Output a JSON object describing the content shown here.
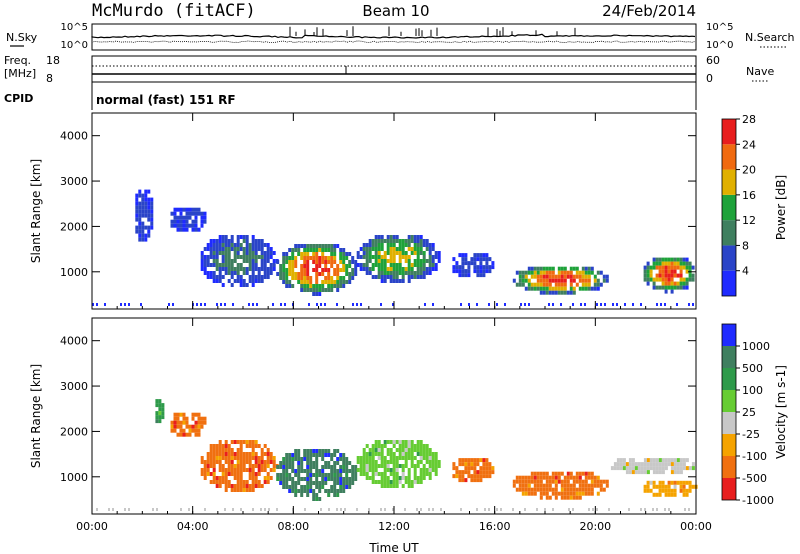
{
  "header": {
    "station": "McMurdo (fitACF)",
    "beam": "Beam 10",
    "date": "24/Feb/2014"
  },
  "noise_panel": {
    "left_label": "N.Sky",
    "right_label": "N.Search",
    "ticks": [
      "10^5",
      "10^0"
    ]
  },
  "freq_panel": {
    "left_label_1": "Freq.",
    "left_label_2": "[MHz]",
    "left_ticks": [
      "18",
      "8"
    ],
    "right_label": "Nave",
    "right_ticks": [
      "60",
      "0"
    ]
  },
  "cpid": {
    "label": "CPID",
    "value": "normal (fast) 151 RF"
  },
  "chart_data": [
    {
      "type": "heatmap",
      "name": "power",
      "ylabel": "Slant Range [km]",
      "yticks": [
        "1000",
        "2000",
        "3000",
        "4000"
      ],
      "xticks": [
        "00:00",
        "04:00",
        "08:00",
        "12:00",
        "16:00",
        "20:00",
        "00:00"
      ],
      "xlim": [
        0,
        24
      ],
      "ylim": [
        180,
        4500
      ],
      "colorbar": {
        "label": "Power [dB]",
        "ticks": [
          "4",
          "8",
          "12",
          "16",
          "20",
          "24",
          "28"
        ],
        "colors": [
          "#1f2bff",
          "#2a44c8",
          "#3f7f5f",
          "#1ea23a",
          "#e0b000",
          "#f06a10",
          "#e81e1e"
        ]
      },
      "regions": [
        {
          "t0": 1.6,
          "t1": 2.4,
          "r0": 1700,
          "r1": 2900,
          "level": 1
        },
        {
          "t0": 3.0,
          "t1": 4.5,
          "r0": 1900,
          "r1": 2500,
          "level": 1
        },
        {
          "t0": 4.2,
          "t1": 7.3,
          "r0": 700,
          "r1": 1900,
          "level": 2
        },
        {
          "t0": 7.2,
          "t1": 10.5,
          "r0": 550,
          "r1": 1700,
          "level": 6
        },
        {
          "t0": 10.4,
          "t1": 13.8,
          "r0": 800,
          "r1": 1900,
          "level": 4
        },
        {
          "t0": 14.2,
          "t1": 15.9,
          "r0": 900,
          "r1": 1500,
          "level": 1
        },
        {
          "t0": 16.6,
          "t1": 20.5,
          "r0": 550,
          "r1": 1200,
          "level": 6
        },
        {
          "t0": 21.8,
          "t1": 24.0,
          "r0": 600,
          "r1": 1400,
          "level": 6
        }
      ]
    },
    {
      "type": "heatmap",
      "name": "velocity",
      "ylabel": "Slant Range [km]",
      "yticks": [
        "1000",
        "2000",
        "3000",
        "4000"
      ],
      "xticks": [
        "00:00",
        "04:00",
        "08:00",
        "12:00",
        "16:00",
        "20:00",
        "00:00"
      ],
      "xlabel": "Time UT",
      "xlim": [
        0,
        24
      ],
      "ylim": [
        180,
        4500
      ],
      "colorbar": {
        "label": "Velocity [m s-1]",
        "ticks": [
          "1000",
          "500",
          "100",
          "25",
          "-25",
          "-100",
          "-500",
          "-1000"
        ],
        "colors": [
          "#1f2bff",
          "#3f7f5f",
          "#2e9a4a",
          "#66cc33",
          "#c8c8c8",
          "#f5a300",
          "#f07010",
          "#e81e1e"
        ]
      },
      "regions": [
        {
          "t0": 2.4,
          "t1": 2.8,
          "r0": 2200,
          "r1": 2800,
          "level": 2
        },
        {
          "t0": 3.0,
          "t1": 4.5,
          "r0": 1900,
          "r1": 2500,
          "level": 6
        },
        {
          "t0": 4.2,
          "t1": 7.3,
          "r0": 700,
          "r1": 1900,
          "level": 6
        },
        {
          "t0": 7.2,
          "t1": 10.5,
          "r0": 550,
          "r1": 1700,
          "level": 1
        },
        {
          "t0": 10.4,
          "t1": 13.8,
          "r0": 800,
          "r1": 1900,
          "level": 3
        },
        {
          "t0": 14.2,
          "t1": 15.9,
          "r0": 900,
          "r1": 1500,
          "level": 6
        },
        {
          "t0": 16.6,
          "t1": 20.5,
          "r0": 550,
          "r1": 1200,
          "level": 6
        },
        {
          "t0": 20.5,
          "t1": 24.0,
          "r0": 1100,
          "r1": 1500,
          "level": 4
        },
        {
          "t0": 21.8,
          "t1": 24.0,
          "r0": 600,
          "r1": 1000,
          "level": 5
        }
      ]
    }
  ]
}
